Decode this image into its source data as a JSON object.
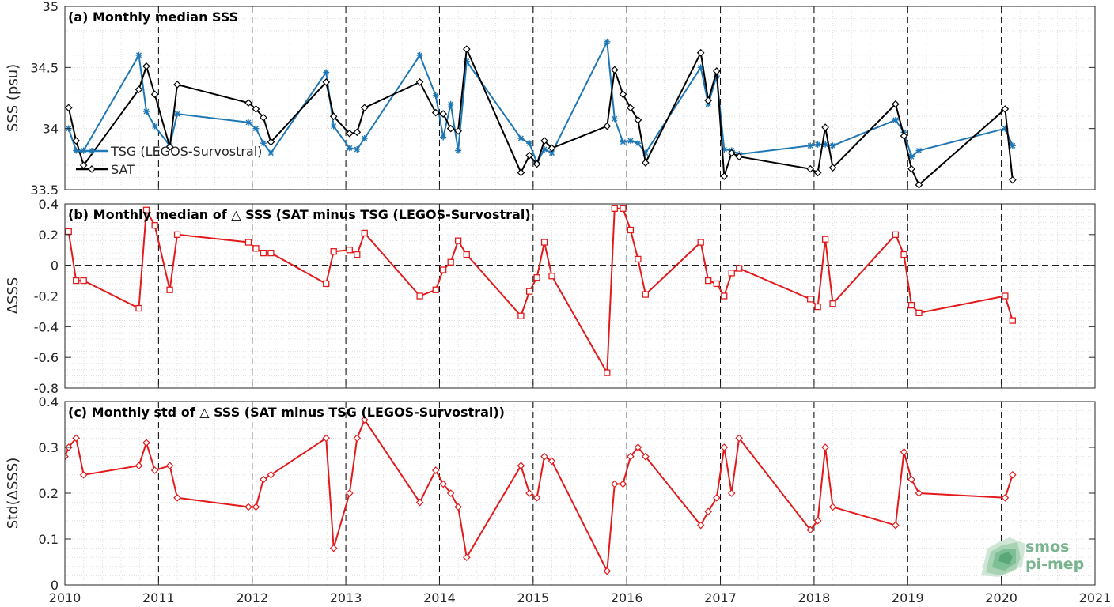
{
  "chart_data": [
    {
      "type": "line",
      "title": "(a) Monthly median SSS",
      "xlabel": "",
      "ylabel": "SSS (psu)",
      "xlim": [
        2010,
        2021
      ],
      "ylim": [
        33.5,
        35
      ],
      "yticks": [
        "33.5",
        "34",
        "34.5",
        "35"
      ],
      "grid": "minor dotted",
      "legend": "lower-left",
      "series": [
        {
          "name": "TSG (LEGOS-Survostral)",
          "color": "#1f77b4",
          "marker": "asterisk",
          "x": [
            2010.04,
            2010.12,
            2010.2,
            2010.79,
            2010.87,
            2010.96,
            2011.12,
            2011.2,
            2011.96,
            2012.04,
            2012.12,
            2012.2,
            2012.79,
            2012.87,
            2013.04,
            2013.12,
            2013.2,
            2013.79,
            2013.96,
            2014.04,
            2014.12,
            2014.2,
            2014.29,
            2014.87,
            2014.96,
            2015.04,
            2015.12,
            2015.2,
            2015.79,
            2015.87,
            2015.96,
            2016.04,
            2016.12,
            2016.2,
            2016.79,
            2016.87,
            2016.96,
            2017.04,
            2017.12,
            2017.2,
            2017.96,
            2018.04,
            2018.12,
            2018.2,
            2018.87,
            2018.96,
            2019.04,
            2019.12,
            2020.04,
            2020.12
          ],
          "values": [
            34.0,
            33.82,
            33.82,
            34.6,
            34.14,
            34.02,
            33.86,
            34.12,
            34.05,
            34.0,
            33.88,
            33.8,
            34.46,
            34.02,
            33.84,
            33.83,
            33.92,
            34.6,
            34.27,
            33.93,
            34.2,
            33.82,
            34.55,
            33.92,
            33.88,
            33.72,
            33.83,
            33.8,
            34.71,
            34.08,
            33.89,
            33.9,
            33.88,
            33.8,
            34.5,
            34.2,
            34.43,
            33.83,
            33.82,
            33.79,
            33.86,
            33.87,
            33.87,
            33.86,
            34.07,
            33.97,
            33.77,
            33.82,
            34.0,
            33.86
          ]
        },
        {
          "name": "SAT",
          "color": "#000000",
          "marker": "diamond",
          "x": [
            2010.04,
            2010.12,
            2010.2,
            2010.79,
            2010.87,
            2010.96,
            2011.12,
            2011.2,
            2011.96,
            2012.04,
            2012.12,
            2012.2,
            2012.79,
            2012.87,
            2013.04,
            2013.12,
            2013.2,
            2013.79,
            2013.96,
            2014.04,
            2014.12,
            2014.2,
            2014.29,
            2014.87,
            2014.96,
            2015.04,
            2015.12,
            2015.2,
            2015.79,
            2015.87,
            2015.96,
            2016.04,
            2016.12,
            2016.2,
            2016.79,
            2016.87,
            2016.96,
            2017.04,
            2017.12,
            2017.2,
            2017.96,
            2018.04,
            2018.12,
            2018.2,
            2018.87,
            2018.96,
            2019.04,
            2019.12,
            2020.04,
            2020.12
          ],
          "values": [
            34.17,
            33.9,
            33.7,
            34.32,
            34.51,
            34.28,
            33.85,
            34.36,
            34.21,
            34.16,
            34.09,
            33.89,
            34.38,
            34.1,
            33.96,
            33.97,
            34.17,
            34.38,
            34.13,
            34.12,
            34.0,
            33.98,
            34.65,
            33.64,
            33.78,
            33.71,
            33.9,
            33.84,
            34.02,
            34.48,
            34.28,
            34.17,
            34.07,
            33.72,
            34.62,
            34.23,
            34.47,
            33.61,
            33.8,
            33.77,
            33.67,
            33.64,
            34.01,
            33.68,
            34.2,
            33.94,
            33.67,
            33.54,
            34.16,
            33.58
          ]
        }
      ]
    },
    {
      "type": "line",
      "title": "(b) Monthly median of △ SSS (SAT minus TSG (LEGOS-Survostral)",
      "xlabel": "",
      "ylabel": "ΔSSS",
      "xlim": [
        2010,
        2021
      ],
      "ylim": [
        -0.8,
        0.4
      ],
      "yticks": [
        "-0.8",
        "-0.6",
        "-0.4",
        "-0.2",
        "0",
        "0.2",
        "0.4"
      ],
      "zero_line": "dashed",
      "grid": "minor dotted",
      "series": [
        {
          "name": "",
          "color": "#e31a1c",
          "marker": "square",
          "x": [
            2010.04,
            2010.12,
            2010.2,
            2010.79,
            2010.87,
            2010.96,
            2011.12,
            2011.2,
            2011.96,
            2012.04,
            2012.12,
            2012.2,
            2012.79,
            2012.87,
            2013.04,
            2013.12,
            2013.2,
            2013.79,
            2013.96,
            2014.04,
            2014.12,
            2014.2,
            2014.29,
            2014.87,
            2014.96,
            2015.04,
            2015.12,
            2015.2,
            2015.79,
            2015.87,
            2015.96,
            2016.04,
            2016.12,
            2016.2,
            2016.79,
            2016.87,
            2016.96,
            2017.04,
            2017.12,
            2017.2,
            2017.96,
            2018.04,
            2018.12,
            2018.2,
            2018.87,
            2018.96,
            2019.04,
            2019.12,
            2020.04,
            2020.12
          ],
          "values": [
            0.22,
            -0.1,
            -0.1,
            -0.28,
            0.36,
            0.26,
            -0.16,
            0.2,
            0.15,
            0.11,
            0.08,
            0.08,
            -0.12,
            0.09,
            0.1,
            0.07,
            0.21,
            -0.2,
            -0.16,
            -0.03,
            0.02,
            0.16,
            0.07,
            -0.33,
            -0.17,
            -0.08,
            0.15,
            -0.07,
            -0.7,
            0.37,
            0.37,
            0.23,
            0.04,
            -0.19,
            0.15,
            -0.1,
            -0.12,
            -0.2,
            -0.05,
            -0.02,
            -0.22,
            -0.27,
            0.17,
            -0.25,
            0.2,
            0.07,
            -0.26,
            -0.31,
            -0.2,
            -0.36
          ]
        }
      ]
    },
    {
      "type": "line",
      "title": "(c) Monthly std of △ SSS (SAT minus TSG (LEGOS-Survostral))",
      "xlabel": "",
      "ylabel": "Std(ΔSSS)",
      "xlim": [
        2010,
        2021
      ],
      "ylim": [
        0,
        0.4
      ],
      "yticks": [
        "0",
        "0.1",
        "0.2",
        "0.3",
        "0.4"
      ],
      "xticks": [
        "2010",
        "2011",
        "2012",
        "2013",
        "2014",
        "2015",
        "2016",
        "2017",
        "2018",
        "2019",
        "2020",
        "2021"
      ],
      "grid": "minor dotted",
      "series": [
        {
          "name": "",
          "color": "#e31a1c",
          "marker": "diamond",
          "x": [
            2010.0,
            2010.04,
            2010.12,
            2010.2,
            2010.79,
            2010.87,
            2010.96,
            2011.12,
            2011.2,
            2011.96,
            2012.04,
            2012.12,
            2012.2,
            2012.79,
            2012.87,
            2013.04,
            2013.12,
            2013.2,
            2013.79,
            2013.96,
            2014.04,
            2014.12,
            2014.2,
            2014.29,
            2014.87,
            2014.96,
            2015.04,
            2015.12,
            2015.2,
            2015.79,
            2015.87,
            2015.96,
            2016.04,
            2016.12,
            2016.2,
            2016.79,
            2016.87,
            2016.96,
            2017.04,
            2017.12,
            2017.2,
            2017.96,
            2018.04,
            2018.12,
            2018.2,
            2018.87,
            2018.96,
            2019.04,
            2019.12,
            2020.04,
            2020.12
          ],
          "values": [
            0.28,
            0.3,
            0.32,
            0.24,
            0.26,
            0.31,
            0.25,
            0.26,
            0.19,
            0.17,
            0.17,
            0.23,
            0.24,
            0.32,
            0.08,
            0.2,
            0.32,
            0.36,
            0.18,
            0.25,
            0.22,
            0.2,
            0.17,
            0.06,
            0.26,
            0.2,
            0.19,
            0.28,
            0.27,
            0.03,
            0.22,
            0.22,
            0.28,
            0.3,
            0.28,
            0.13,
            0.16,
            0.19,
            0.3,
            0.2,
            0.32,
            0.12,
            0.14,
            0.3,
            0.17,
            0.13,
            0.29,
            0.23,
            0.2,
            0.19,
            0.24
          ]
        }
      ]
    }
  ],
  "logo": {
    "line1": "smos",
    "line2": "pi-mep",
    "icon": "smos-pimep-logo"
  }
}
